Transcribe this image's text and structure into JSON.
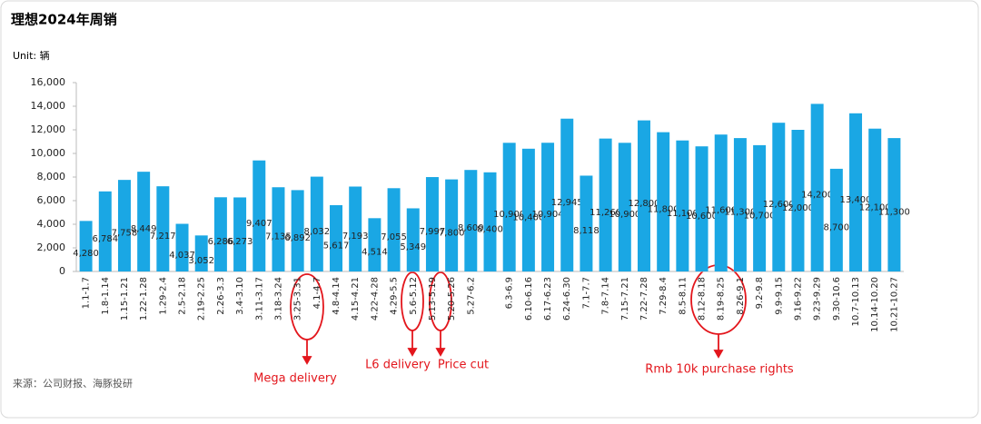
{
  "chart_data": {
    "type": "bar",
    "title": "理想2024年周销",
    "unit": "Unit: 辆",
    "source": "来源：公司财报、海豚投研",
    "categories": [
      "1.1-1.7",
      "1.8-1.14",
      "1.15-1.21",
      "1.22-1.28",
      "1.29-2.4",
      "2.5-2.18",
      "2.19-2.25",
      "2.26-3.3",
      "3.4-3.10",
      "3.11-3.17",
      "3.18-3.24",
      "3.25-3.31",
      "4.1-4.7",
      "4.8-4.14",
      "4.15-4.21",
      "4.22-4.28",
      "4.29-5.5",
      "5.6-5.12",
      "5.13-5.19",
      "5.20-5.26",
      "5.27-6.2",
      null,
      "6.3-6.9",
      "6.10-6.16",
      "6.17-6.23",
      "6.24-6.30",
      "7.1-7.7",
      "7.8-7.14",
      "7.15-7.21",
      "7.22-7.28",
      "7.29-8.4",
      "8.5-8.11",
      "8.12-8.18",
      "8.19-8.25",
      "8.26-9.1",
      "9.2-9.8",
      "9.9-9.15",
      "9.16-9.22",
      "9.23-9.29",
      "9.30-10.6",
      "10.7-10.13",
      "10.14-10.20",
      "10.21-10.27"
    ],
    "values": [
      4280,
      6784,
      7758,
      8449,
      7217,
      4037,
      3052,
      6286,
      6273,
      9407,
      7135,
      6892,
      8032,
      5617,
      7193,
      4514,
      7055,
      5349,
      7997,
      7800,
      8600,
      8400,
      10900,
      10400,
      10904,
      12945,
      8118,
      11260,
      10900,
      12800,
      11800,
      11100,
      10600,
      11600,
      11300,
      10700,
      12600,
      12000,
      14200,
      8700,
      13400,
      12100,
      11300
    ],
    "value_labels": [
      "4,280",
      "6,784",
      "7,758",
      "8,449",
      "7,217",
      "4,037",
      "3,052",
      "6,286",
      "6,273",
      "9,407",
      "7,135",
      "6,892",
      "8,032",
      "5,617",
      "7,193",
      "4,514",
      "7,055",
      "5,349",
      "7,997",
      "7,800",
      "8,600",
      "8,400",
      "10,900",
      "10,400",
      "10,904",
      "12,945",
      "8,118",
      "11,260",
      "10,900",
      "12,800",
      "11,800",
      "11,100",
      "10,600",
      "11,600",
      "11,300",
      "10,700",
      "12,600",
      "12,000",
      "14,200",
      "8,700",
      "13,400",
      "12,100",
      "11,300"
    ],
    "color": "#1aa7e4",
    "ylim": [
      0,
      16000
    ],
    "yticks": [
      0,
      {
        "value": 2000,
        "label": "2,000"
      },
      {
        "value": 4000,
        "label": "4,000"
      },
      {
        "value": 6000,
        "label": "6,000"
      },
      {
        "value": 8000,
        "label": "8,000"
      },
      {
        "value": 10000,
        "label": "10,000"
      },
      {
        "value": 12000,
        "label": "12,000"
      },
      {
        "value": 14000,
        "label": "14,000"
      },
      {
        "value": 16000,
        "label": "16,000"
      }
    ],
    "annotations": [
      "Mega delivery",
      "L6 delivery",
      "Price cut",
      "Rmb 10k purchase rights"
    ]
  }
}
